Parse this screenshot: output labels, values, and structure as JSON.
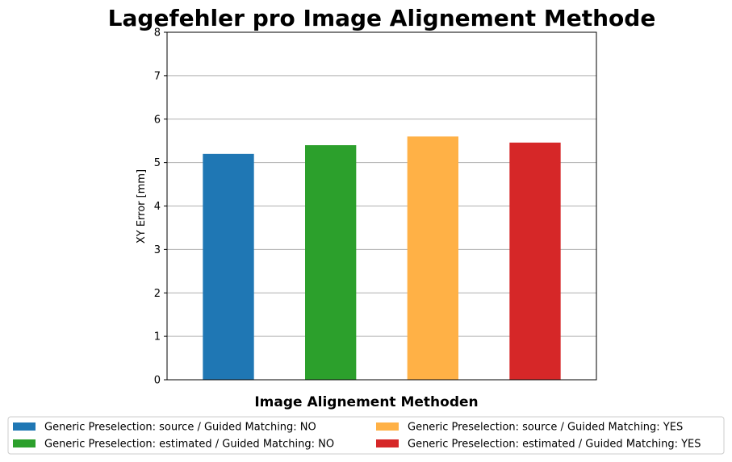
{
  "chart_data": {
    "type": "bar",
    "title": "Lagefehler pro Image Alignement Methode",
    "xlabel": "Image Alignement Methoden",
    "ylabel": "XY Error [mm]",
    "ylim": [
      0,
      8
    ],
    "yticks": [
      0,
      1,
      2,
      3,
      4,
      5,
      6,
      7,
      8
    ],
    "grid": "y",
    "legend_position": "bottom",
    "legend_columns": 2,
    "series": [
      {
        "name": "Generic Preselection: source / Guided Matching: NO",
        "value": 5.2,
        "color": "#1f77b4"
      },
      {
        "name": "Generic Preselection: estimated / Guided Matching: NO",
        "value": 5.4,
        "color": "#2ca02c"
      },
      {
        "name": "Generic Preselection: source / Guided Matching: YES",
        "value": 5.6,
        "color": "#ffb146"
      },
      {
        "name": "Generic Preselection: estimated / Guided Matching: YES",
        "value": 5.46,
        "color": "#d62728"
      }
    ]
  }
}
